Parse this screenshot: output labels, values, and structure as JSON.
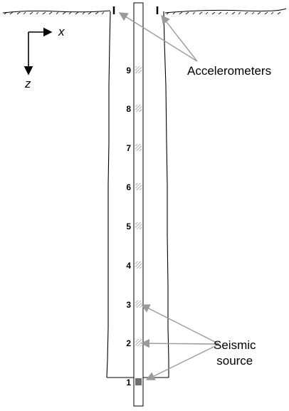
{
  "axes": {
    "x_label": "x",
    "z_label": "z"
  },
  "callouts": {
    "accelerometers": "Accelerometers",
    "seismic_source_line1": "Seismic",
    "seismic_source_line2": "source"
  },
  "positions": [
    {
      "label": "9",
      "type": "receiver"
    },
    {
      "label": "8",
      "type": "receiver"
    },
    {
      "label": "7",
      "type": "receiver"
    },
    {
      "label": "6",
      "type": "receiver"
    },
    {
      "label": "5",
      "type": "receiver"
    },
    {
      "label": "4",
      "type": "receiver"
    },
    {
      "label": "3",
      "type": "receiver"
    },
    {
      "label": "2",
      "type": "receiver"
    },
    {
      "label": "1",
      "type": "source"
    }
  ],
  "colors": {
    "line": "#000000",
    "arrow": "#9a9a9a",
    "hatch": "#7a7a7a",
    "source_fill": "#6f6f6f"
  }
}
